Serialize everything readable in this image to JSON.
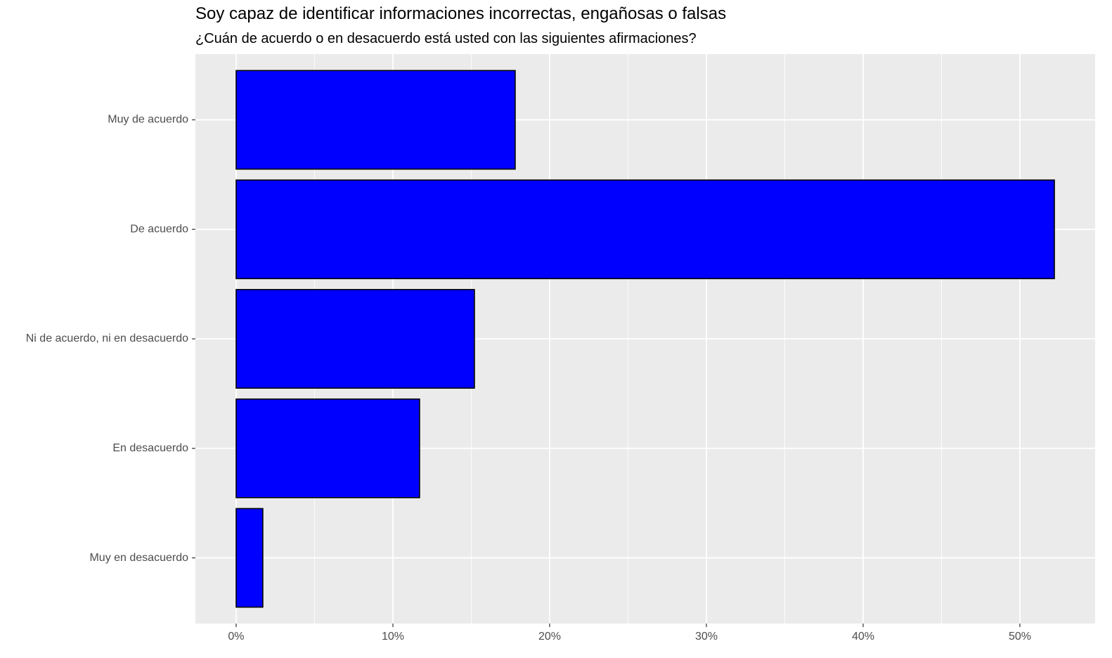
{
  "chart_data": {
    "type": "bar",
    "orientation": "horizontal",
    "title": "Soy capaz de identificar informaciones incorrectas, engañosas o falsas",
    "subtitle": "¿Cuán de acuerdo o en desacuerdo está usted con las siguientes afirmaciones?",
    "xlabel": "",
    "ylabel": "",
    "categories": [
      "Muy de acuerdo",
      "De acuerdo",
      "Ni de acuerdo, ni en desacuerdo",
      "En desacuerdo",
      "Muy en desacuerdo"
    ],
    "values": [
      17.8,
      52.2,
      15.2,
      11.7,
      1.7
    ],
    "xlim": [
      -2.6,
      54.8
    ],
    "x_ticks": [
      0,
      10,
      20,
      30,
      40,
      50
    ],
    "x_tick_labels": [
      "0%",
      "10%",
      "20%",
      "30%",
      "40%",
      "50%"
    ],
    "grid": true,
    "bar_color": "#0000FF",
    "bar_border_color": "#000000",
    "panel_background": "#EBEBEB",
    "grid_color": "#FFFFFF"
  }
}
